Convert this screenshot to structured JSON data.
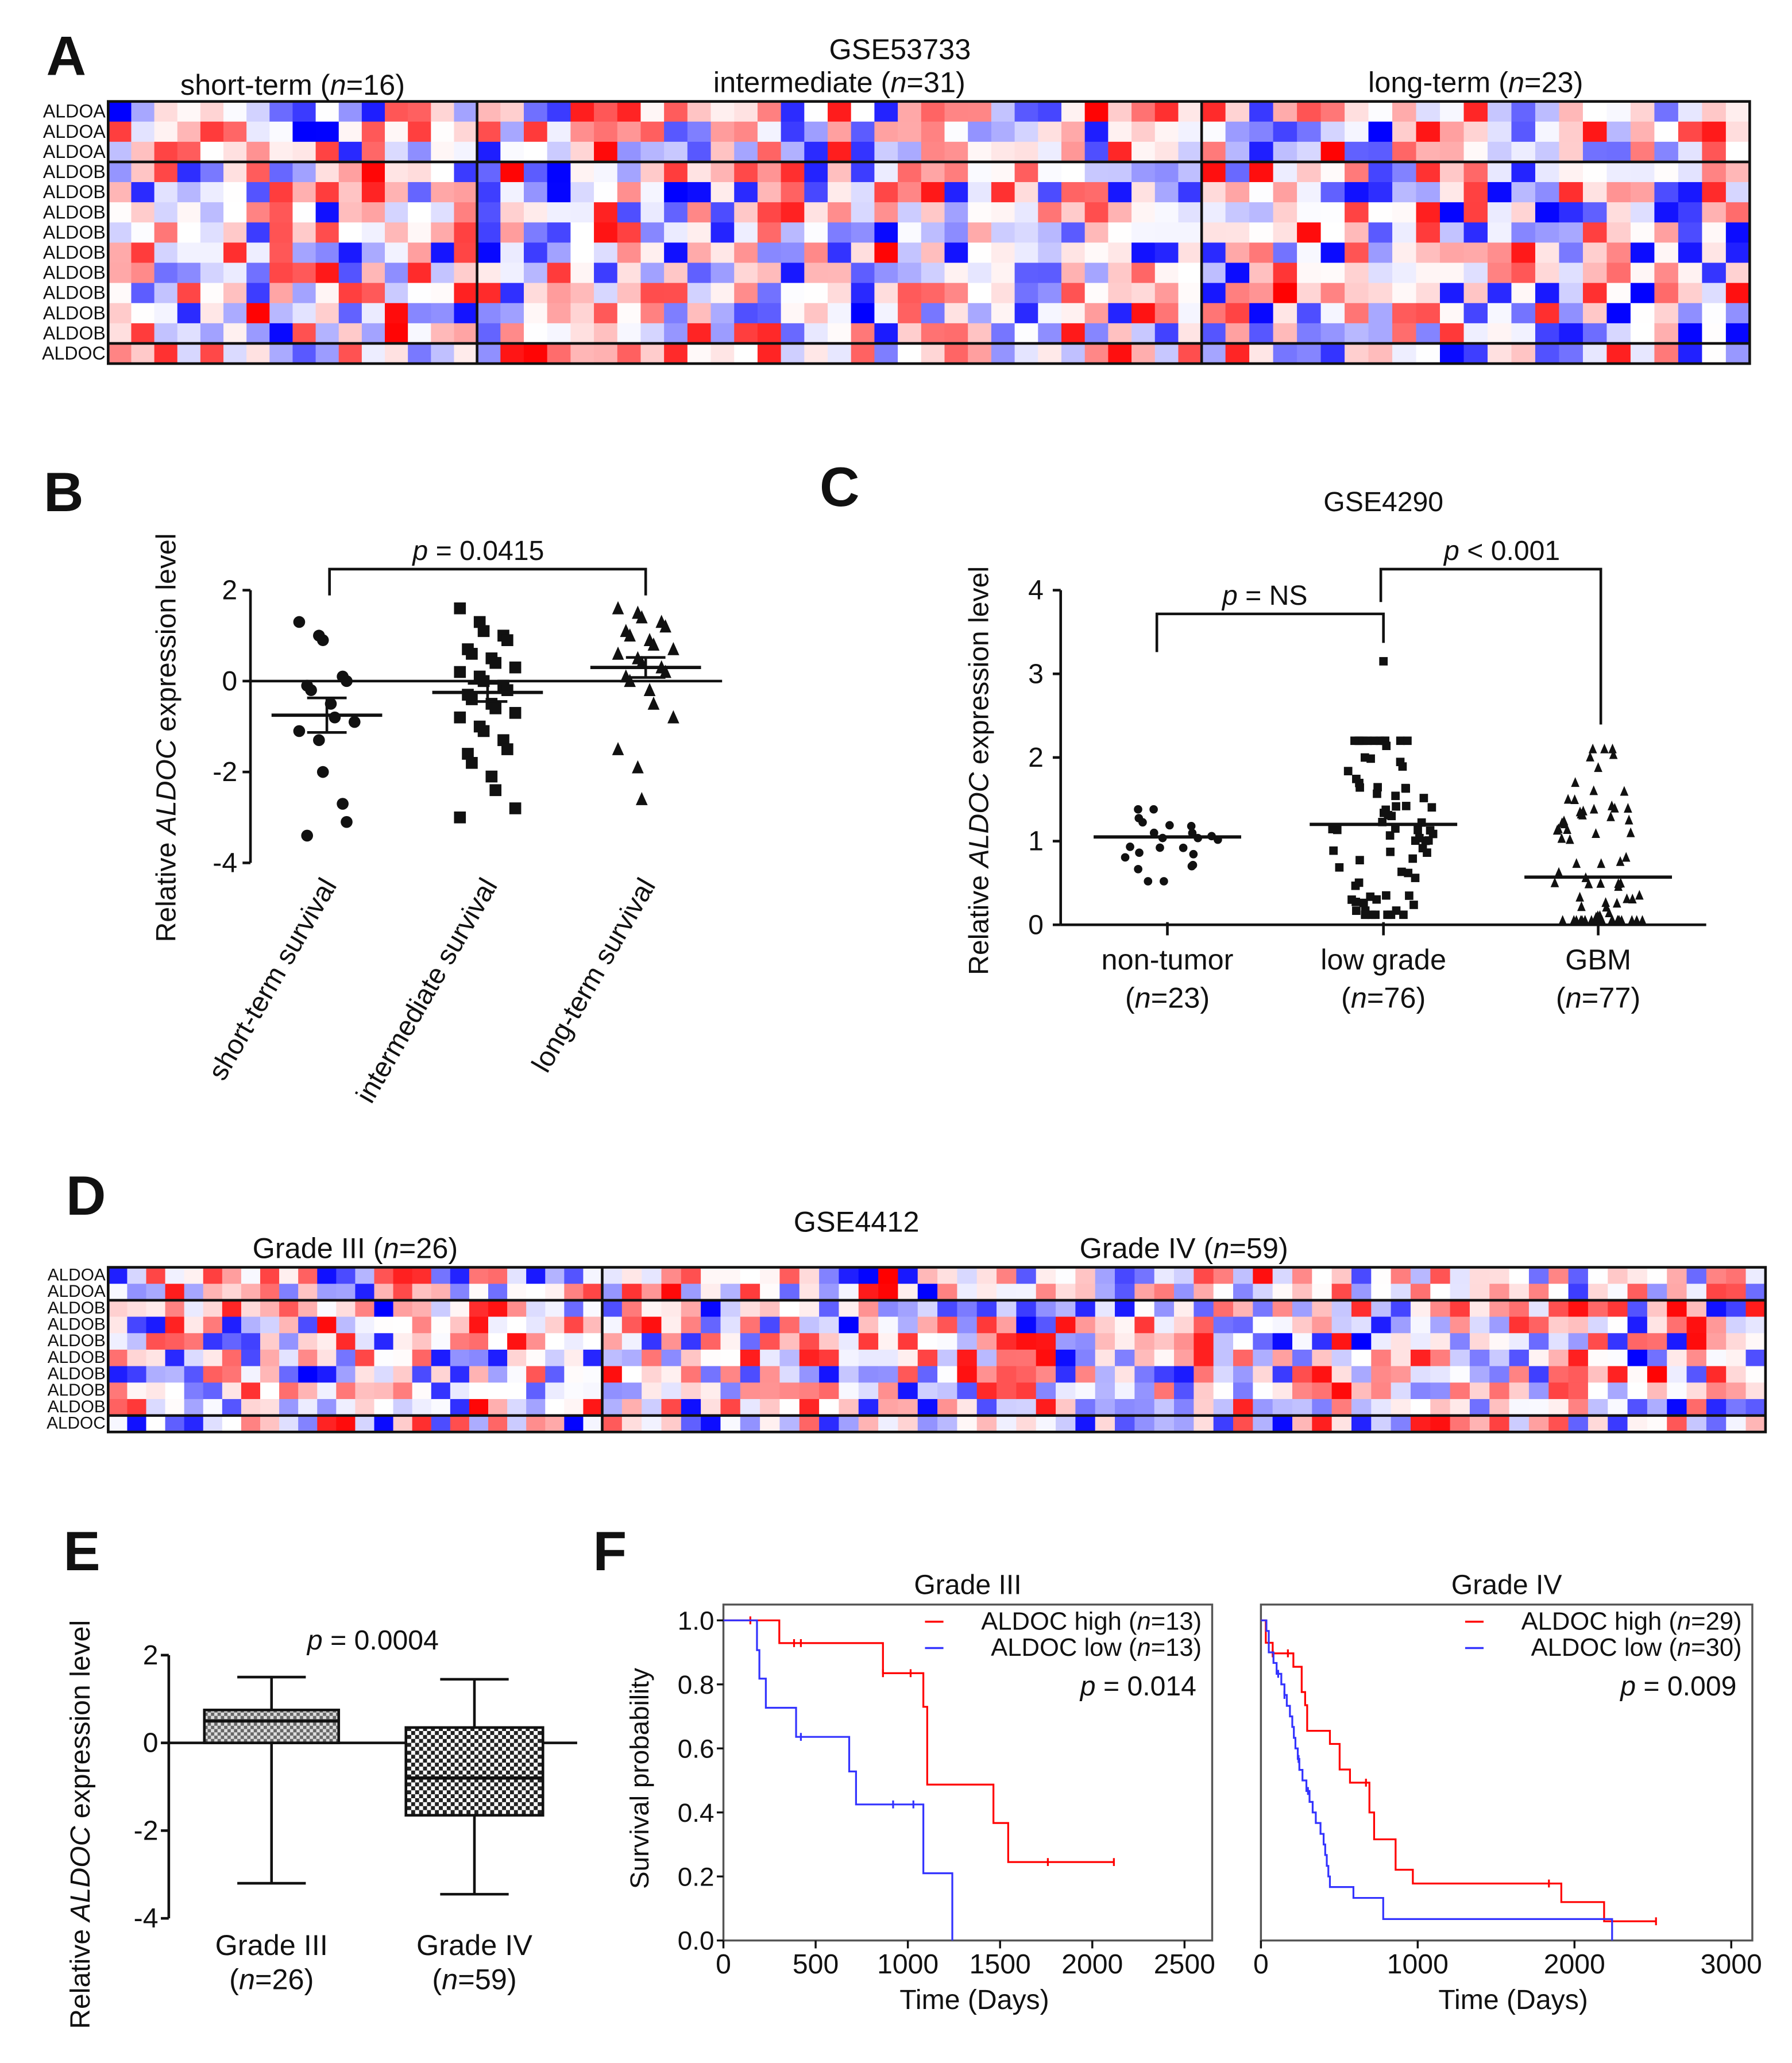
{
  "panels": {
    "A": "A",
    "B": "B",
    "C": "C",
    "D": "D",
    "E": "E",
    "F": "F"
  },
  "chart_data": [
    {
      "id": "A",
      "type": "heatmap",
      "title": "GSE53733",
      "groups": [
        {
          "label": "short-term (n=16)",
          "n": 16
        },
        {
          "label": "intermediate (n=31)",
          "n": 31
        },
        {
          "label": "long-term (n=23)",
          "n": 23
        }
      ],
      "rows": [
        "ALDOA",
        "ALDOA",
        "ALDOA",
        "ALDOB",
        "ALDOB",
        "ALDOB",
        "ALDOB",
        "ALDOB",
        "ALDOB",
        "ALDOB",
        "ALDOB",
        "ALDOB",
        "ALDOC"
      ],
      "row_blocks": [
        3,
        9,
        1
      ],
      "colors": {
        "low": "#0000ff",
        "mid": "#ffffff",
        "high": "#ff0000"
      }
    },
    {
      "id": "B",
      "type": "scatter",
      "ylabel": "Relative ALDOC expression level",
      "ylim": [
        -4,
        2
      ],
      "yticks": [
        "2",
        "0",
        "-2",
        "-4"
      ],
      "ytick_values": [
        2,
        0,
        -2,
        -4
      ],
      "categories": [
        "short-term survival",
        "intermediate survival",
        "long-term survival"
      ],
      "markers": [
        "circle",
        "square",
        "triangle"
      ],
      "series": [
        {
          "name": "short-term survival",
          "mean": -0.75,
          "sem": 0.38,
          "values": [
            1.3,
            1.0,
            0.9,
            0.1,
            0.0,
            -0.1,
            -0.2,
            -0.5,
            -0.8,
            -0.9,
            -1.1,
            -1.3,
            -2.0,
            -2.7,
            -3.1,
            -3.4
          ]
        },
        {
          "name": "intermediate survival",
          "mean": -0.25,
          "sem": 0.2,
          "values": [
            1.6,
            1.3,
            1.1,
            1.0,
            0.9,
            0.7,
            0.6,
            0.5,
            0.4,
            0.3,
            0.2,
            0.1,
            0.0,
            -0.1,
            -0.2,
            -0.3,
            -0.4,
            -0.5,
            -0.6,
            -0.7,
            -0.8,
            -1.0,
            -1.1,
            -1.3,
            -1.5,
            -1.6,
            -1.8,
            -2.1,
            -2.4,
            -2.8,
            -3.0
          ]
        },
        {
          "name": "long-term survival",
          "mean": 0.3,
          "sem": 0.22,
          "values": [
            1.6,
            1.5,
            1.4,
            1.3,
            1.2,
            1.1,
            1.0,
            0.9,
            0.8,
            0.7,
            0.6,
            0.5,
            0.4,
            0.3,
            0.2,
            0.1,
            0.0,
            -0.2,
            -0.5,
            -0.8,
            -1.5,
            -1.9,
            -2.6
          ]
        }
      ],
      "annotation": "p = 0.0415",
      "bracket": [
        "short-term survival",
        "long-term survival"
      ]
    },
    {
      "id": "C",
      "type": "scatter",
      "title": "GSE4290",
      "ylabel": "Relative ALDOC expression level",
      "ylim": [
        0,
        4
      ],
      "yticks": [
        "0",
        "1",
        "2",
        "3",
        "4"
      ],
      "ytick_values": [
        0,
        1,
        2,
        3,
        4
      ],
      "categories": [
        {
          "name": "non-tumor",
          "n_label": "(n=23)"
        },
        {
          "name": "low grade",
          "n_label": "(n=76)"
        },
        {
          "name": "GBM",
          "n_label": "(n=77)"
        }
      ],
      "markers": [
        "circle",
        "square",
        "triangle"
      ],
      "series": [
        {
          "name": "non-tumor",
          "n": 23,
          "mean": 1.05,
          "min": 0.52,
          "max": 1.38
        },
        {
          "name": "low grade",
          "n": 76,
          "mean": 1.2,
          "min": 0.12,
          "max": 2.2,
          "outlier": 3.15
        },
        {
          "name": "GBM",
          "n": 77,
          "mean": 0.57,
          "min": 0.05,
          "max": 2.1
        }
      ],
      "annotations": [
        "p = NS",
        "p < 0.001"
      ]
    },
    {
      "id": "D",
      "type": "heatmap",
      "title": "GSE4412",
      "groups": [
        {
          "label": "Grade III (n=26)",
          "n": 26
        },
        {
          "label": "Grade IV (n=59)",
          "n": 59
        }
      ],
      "rows": [
        "ALDOA",
        "ALDOA",
        "ALDOB",
        "ALDOB",
        "ALDOB",
        "ALDOB",
        "ALDOB",
        "ALDOB",
        "ALDOB",
        "ALDOC"
      ],
      "row_blocks": [
        2,
        7,
        1
      ]
    },
    {
      "id": "E",
      "type": "box",
      "ylabel": "Relative ALDOC expression level",
      "ylim": [
        -4,
        2
      ],
      "yticks": [
        "2",
        "0",
        "-2",
        "-4"
      ],
      "ytick_values": [
        2,
        0,
        -2,
        -4
      ],
      "categories": [
        {
          "name": "Grade III",
          "n_label": "(n=26)",
          "min": -3.2,
          "q1": 0.0,
          "median": 0.5,
          "q3": 0.75,
          "max": 1.5
        },
        {
          "name": "Grade IV",
          "n_label": "(n=59)",
          "min": -3.45,
          "q1": -1.65,
          "median": -0.8,
          "q3": 0.35,
          "max": 1.45
        }
      ],
      "annotation": "p = 0.0004"
    },
    {
      "id": "F1",
      "type": "line",
      "title": "Grade III",
      "ylabel": "Survival probability",
      "xlabel": "Time (Days)",
      "xlim": [
        0,
        2600
      ],
      "ylim": [
        0,
        1.0
      ],
      "xticks": [
        "0",
        "500",
        "1000",
        "1500",
        "2000",
        "2500"
      ],
      "xtick_values": [
        0,
        500,
        1000,
        1500,
        2000,
        2500
      ],
      "yticks": [
        "1.0",
        "0.8",
        "0.6",
        "0.4",
        "0.2",
        "0.0"
      ],
      "ytick_values": [
        1,
        0.8,
        0.6,
        0.4,
        0.2,
        0
      ],
      "annotation": "p = 0.014",
      "series": [
        {
          "name": "ALDOC high (n=13)",
          "color": "#ff0000",
          "steps": [
            [
              0,
              1
            ],
            [
              303,
              0.929
            ],
            [
              865,
              0.835
            ],
            [
              1084,
              0.73
            ],
            [
              1105,
              0.487
            ],
            [
              1464,
              0.367
            ],
            [
              1544,
              0.245
            ]
          ],
          "end": 2117,
          "censored": [
            146,
            383,
            420,
            865,
            1015,
            1759,
            2117
          ]
        },
        {
          "name": "ALDOC low (n=13)",
          "color": "#3333ff",
          "steps": [
            [
              0,
              1
            ],
            [
              182,
              0.907
            ],
            [
              195,
              0.818
            ],
            [
              230,
              0.727
            ],
            [
              394,
              0.636
            ],
            [
              682,
              0.528
            ],
            [
              719,
              0.425
            ],
            [
              1084,
              0.21
            ],
            [
              1241,
              0
            ]
          ],
          "end": 1241,
          "censored": [
            420,
            920,
            1030
          ]
        }
      ]
    },
    {
      "id": "F2",
      "type": "line",
      "title": "Grade IV",
      "xlabel": "Time (Days)",
      "xlim": [
        0,
        3150
      ],
      "ylim": [
        0,
        1.0
      ],
      "xticks": [
        "0",
        "1000",
        "2000",
        "3000"
      ],
      "xtick_values": [
        0,
        1000,
        2000,
        3000
      ],
      "annotation": "p = 0.009",
      "series": [
        {
          "name": "ALDOC high (n=29)",
          "color": "#ff0000",
          "steps": [
            [
              0,
              1
            ],
            [
              31,
              0.93
            ],
            [
              75,
              0.897
            ],
            [
              207,
              0.855
            ],
            [
              260,
              0.776
            ],
            [
              282,
              0.735
            ],
            [
              295,
              0.655
            ],
            [
              440,
              0.614
            ],
            [
              502,
              0.534
            ],
            [
              568,
              0.493
            ],
            [
              692,
              0.4
            ],
            [
              722,
              0.316
            ],
            [
              859,
              0.221
            ],
            [
              969,
              0.178
            ],
            [
              1916,
              0.12
            ],
            [
              2189,
              0.06
            ]
          ],
          "end": 2520,
          "censored": [
            75,
            172,
            670,
            1837,
            2520
          ]
        },
        {
          "name": "ALDOC low (n=30)",
          "color": "#3333ff",
          "steps": [
            [
              0,
              1
            ],
            [
              35,
              0.967
            ],
            [
              50,
              0.9
            ],
            [
              80,
              0.867
            ],
            [
              100,
              0.833
            ],
            [
              130,
              0.8
            ],
            [
              150,
              0.767
            ],
            [
              165,
              0.733
            ],
            [
              185,
              0.7
            ],
            [
              200,
              0.667
            ],
            [
              210,
              0.633
            ],
            [
              220,
              0.6
            ],
            [
              235,
              0.567
            ],
            [
              245,
              0.533
            ],
            [
              265,
              0.5
            ],
            [
              290,
              0.467
            ],
            [
              310,
              0.433
            ],
            [
              330,
              0.4
            ],
            [
              350,
              0.367
            ],
            [
              380,
              0.333
            ],
            [
              400,
              0.3
            ],
            [
              410,
              0.267
            ],
            [
              420,
              0.233
            ],
            [
              430,
              0.2
            ],
            [
              440,
              0.167
            ],
            [
              590,
              0.133
            ],
            [
              780,
              0.067
            ],
            [
              2240,
              0
            ]
          ],
          "end": 2240,
          "censored": [
            110,
            150,
            240,
            300
          ]
        }
      ]
    }
  ]
}
